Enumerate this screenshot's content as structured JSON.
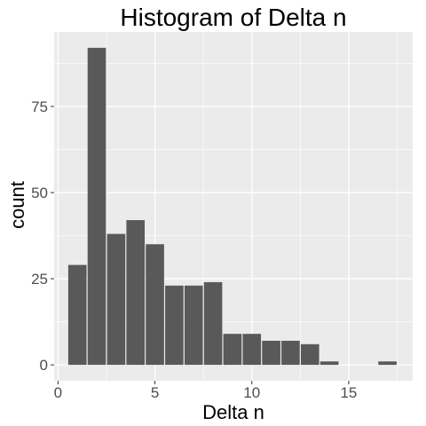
{
  "chart_data": {
    "type": "bar",
    "title": "Histogram of Delta n",
    "xlabel": "Delta n",
    "ylabel": "count",
    "xlim": [
      -0.2,
      18.3
    ],
    "ylim": [
      -4.6,
      96.6
    ],
    "xticks": [
      0,
      5,
      10,
      15
    ],
    "yticks": [
      0,
      25,
      50,
      75
    ],
    "grid": true,
    "legend": "none",
    "bin_width": 1,
    "bins": [
      {
        "center": 1,
        "count": 29
      },
      {
        "center": 2,
        "count": 92
      },
      {
        "center": 3,
        "count": 38
      },
      {
        "center": 4,
        "count": 42
      },
      {
        "center": 5,
        "count": 35
      },
      {
        "center": 6,
        "count": 23
      },
      {
        "center": 7,
        "count": 23
      },
      {
        "center": 8,
        "count": 24
      },
      {
        "center": 9,
        "count": 9
      },
      {
        "center": 10,
        "count": 9
      },
      {
        "center": 11,
        "count": 7
      },
      {
        "center": 12,
        "count": 7
      },
      {
        "center": 13,
        "count": 6
      },
      {
        "center": 14,
        "count": 1
      },
      {
        "center": 15,
        "count": 0
      },
      {
        "center": 16,
        "count": 0
      },
      {
        "center": 17,
        "count": 1
      }
    ],
    "colors": {
      "panel": "#ebebeb",
      "grid_major": "#ffffff",
      "bar_fill": "#595959",
      "tick": "#333333"
    }
  }
}
